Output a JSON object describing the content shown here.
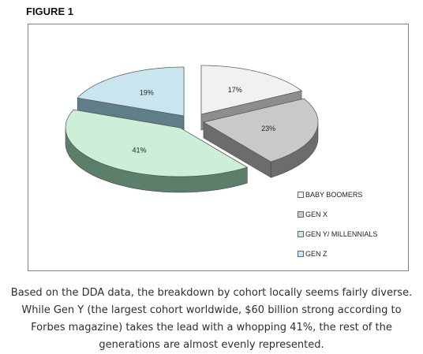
{
  "figure_title": "FIGURE 1",
  "chart_data": {
    "type": "pie",
    "categories": [
      "BABY BOOMERS",
      "GEN X",
      "GEN Y/ MILLENNIALS",
      "GEN Z"
    ],
    "values": [
      17,
      23,
      41,
      19
    ],
    "value_labels": [
      "17%",
      "23%",
      "41%",
      "19%"
    ],
    "unit": "%",
    "style": "3d-exploded",
    "legend_position": "bottom-right",
    "colors": {
      "BABY BOOMERS": "#f1f1f1",
      "GEN X": "#c9c9c9",
      "GEN Y/ MILLENNIALS": "#cdefd8",
      "GEN Z": "#c9e6ef"
    },
    "side_colors": {
      "BABY BOOMERS": "#8d8d8d",
      "GEN X": "#6c6c6c",
      "GEN Y/ MILLENNIALS": "#5c7f6c",
      "GEN Z": "#5e7e88"
    }
  },
  "caption": "Based on the DDA data, the breakdown by cohort locally seems fairly diverse. While Gen Y (the largest cohort worldwide, $60 billion strong according to Forbes magazine) takes the lead with a whopping 41%, the rest of the generations are almost evenly represented."
}
